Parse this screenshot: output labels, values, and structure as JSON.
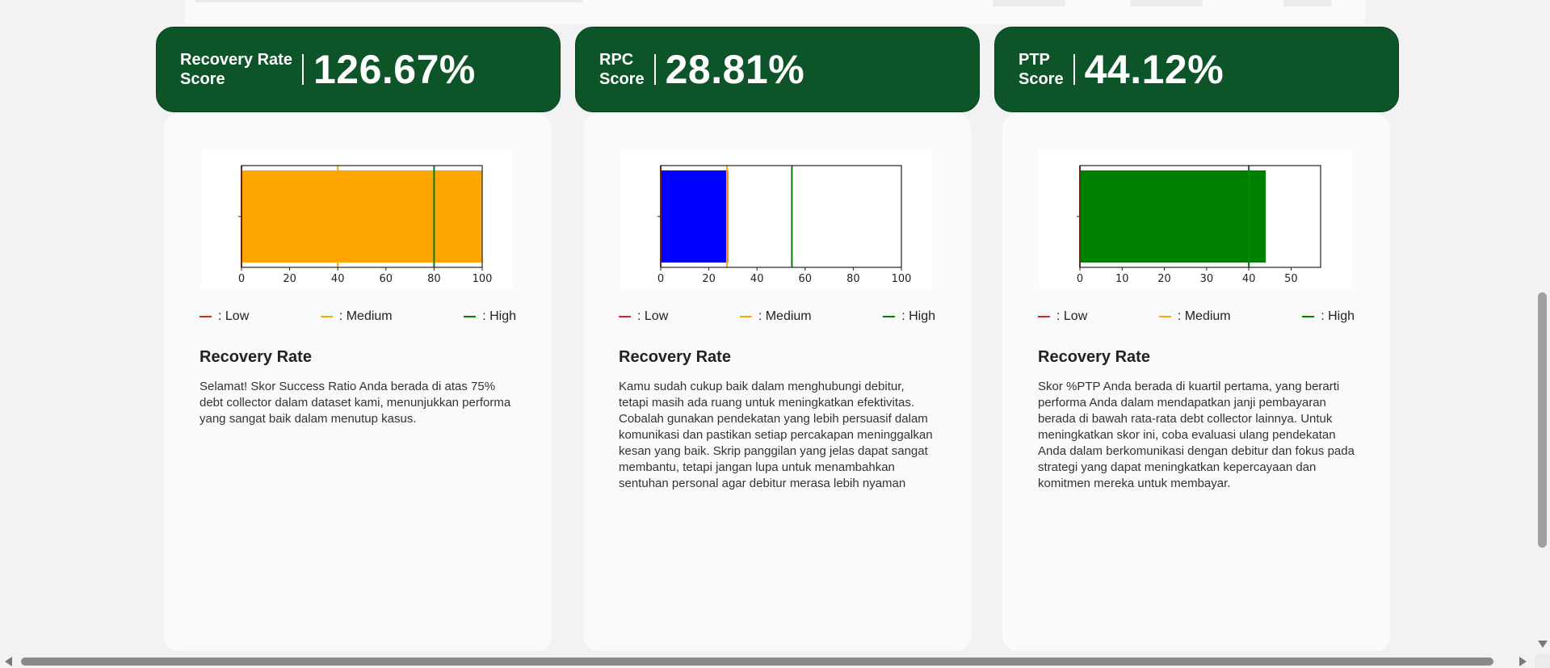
{
  "colors": {
    "header_bg": "#0e5429",
    "low": "#d62728",
    "medium": "#ffa500",
    "high": "#008000"
  },
  "legend": {
    "low": ": Low",
    "medium": ": Medium",
    "high": ": High"
  },
  "cards": [
    {
      "label": "Recovery Rate\nScore",
      "value": "126.67%",
      "title": "Recovery Rate",
      "text": "Selamat! Skor Success Ratio Anda berada di atas 75% debt collector dalam dataset kami, menunjukkan performa yang sangat baik dalam menutup kasus."
    },
    {
      "label": "RPC\nScore",
      "value": "28.81%",
      "title": "Recovery Rate",
      "text": "Kamu sudah cukup baik dalam menghubungi debitur, tetapi masih ada ruang untuk meningkatkan efektivitas. Cobalah gunakan pendekatan yang lebih persuasif dalam komunikasi dan pastikan setiap percakapan meninggalkan kesan yang baik. Skrip panggilan yang jelas dapat sangat membantu, tetapi jangan lupa untuk menambahkan sentuhan personal agar debitur merasa lebih nyaman"
    },
    {
      "label": "PTP\nScore",
      "value": "44.12%",
      "title": "Recovery Rate",
      "text": "Skor %PTP Anda berada di kuartil pertama, yang berarti performa Anda dalam mendapatkan janji pembayaran berada di bawah rata-rata debt collector lainnya. Untuk meningkatkan skor ini, coba evaluasi ulang pendekatan Anda dalam berkomunikasi dengan debitur dan fokus pada strategi yang dapat meningkatkan kepercayaan dan komitmen mereka untuk membayar."
    }
  ],
  "chart_data": [
    {
      "type": "bar",
      "orientation": "horizontal",
      "value": 100,
      "bar_color": "#ffa500",
      "thresholds": {
        "low": 0,
        "medium": 40,
        "high": 80
      },
      "xlim": [
        0,
        100
      ],
      "xticks": [
        0,
        20,
        40,
        60,
        80,
        100
      ]
    },
    {
      "type": "bar",
      "orientation": "horizontal",
      "value": 28,
      "bar_color": "#0000ff",
      "thresholds": {
        "low": 0,
        "medium": 27.5,
        "high": 54.5
      },
      "xlim": [
        0,
        100
      ],
      "xticks": [
        0,
        20,
        40,
        60,
        80,
        100
      ]
    },
    {
      "type": "bar",
      "orientation": "horizontal",
      "value": 44,
      "bar_color": "#008000",
      "thresholds": {
        "low": 0,
        "medium": 40,
        "high": 40
      },
      "xlim": [
        0,
        57
      ],
      "xticks": [
        0,
        10,
        20,
        30,
        40,
        50
      ]
    }
  ]
}
